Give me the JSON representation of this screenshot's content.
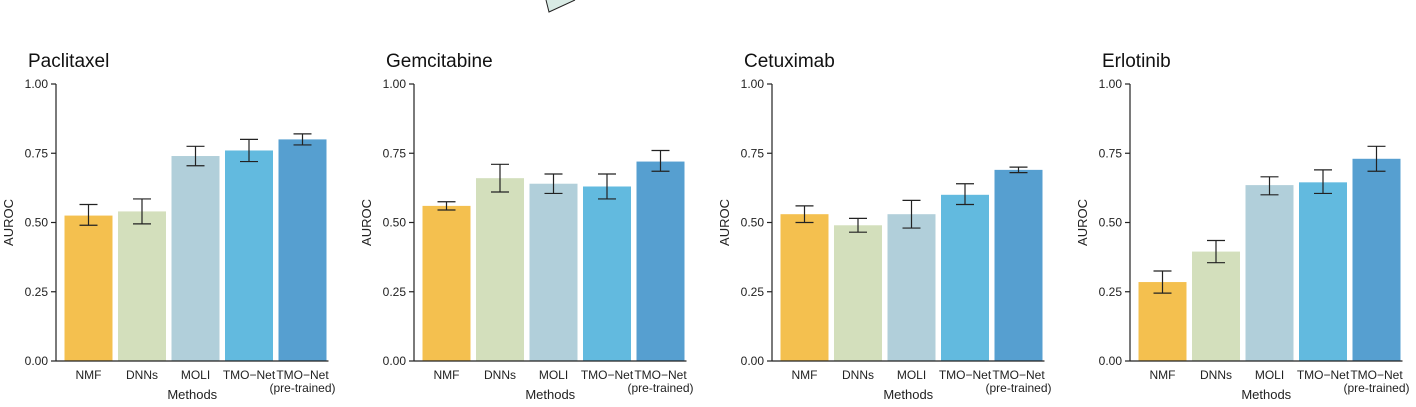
{
  "colors": {
    "NMF": "#f4c04f",
    "DNNs": "#d3dfbc",
    "MOLI": "#b1cfda",
    "TMO-Net": "#62badf",
    "TMO-Net (pre-trained)": "#569fd0"
  },
  "chart_data": [
    {
      "type": "bar",
      "title": "Paclitaxel",
      "xlabel": "Methods",
      "ylabel": "AUROC",
      "ylim": [
        0,
        1
      ],
      "yticks": [
        "0.00",
        "0.25",
        "0.50",
        "0.75",
        "1.00"
      ],
      "categories": [
        "NMF",
        "DNNs",
        "MOLI",
        "TMO−Net",
        "TMO−Net\n(pre-trained)"
      ],
      "values": [
        0.525,
        0.54,
        0.74,
        0.76,
        0.8
      ],
      "err_low": [
        0.49,
        0.495,
        0.705,
        0.72,
        0.78
      ],
      "err_high": [
        0.565,
        0.585,
        0.775,
        0.8,
        0.82
      ]
    },
    {
      "type": "bar",
      "title": "Gemcitabine",
      "xlabel": "Methods",
      "ylabel": "AUROC",
      "ylim": [
        0,
        1
      ],
      "yticks": [
        "0.00",
        "0.25",
        "0.50",
        "0.75",
        "1.00"
      ],
      "categories": [
        "NMF",
        "DNNs",
        "MOLI",
        "TMO−Net",
        "TMO−Net\n(pre-trained)"
      ],
      "values": [
        0.56,
        0.66,
        0.64,
        0.63,
        0.72
      ],
      "err_low": [
        0.545,
        0.61,
        0.605,
        0.585,
        0.685
      ],
      "err_high": [
        0.575,
        0.71,
        0.675,
        0.675,
        0.76
      ]
    },
    {
      "type": "bar",
      "title": "Cetuximab",
      "xlabel": "Methods",
      "ylabel": "AUROC",
      "ylim": [
        0,
        1
      ],
      "yticks": [
        "0.00",
        "0.25",
        "0.50",
        "0.75",
        "1.00"
      ],
      "categories": [
        "NMF",
        "DNNs",
        "MOLI",
        "TMO−Net",
        "TMO−Net\n(pre-trained)"
      ],
      "values": [
        0.53,
        0.49,
        0.53,
        0.6,
        0.69
      ],
      "err_low": [
        0.5,
        0.465,
        0.48,
        0.565,
        0.68
      ],
      "err_high": [
        0.56,
        0.515,
        0.58,
        0.64,
        0.7
      ]
    },
    {
      "type": "bar",
      "title": "Erlotinib",
      "xlabel": "Methods",
      "ylabel": "AUROC",
      "ylim": [
        0,
        1
      ],
      "yticks": [
        "0.00",
        "0.25",
        "0.50",
        "0.75",
        "1.00"
      ],
      "categories": [
        "NMF",
        "DNNs",
        "MOLI",
        "TMO−Net",
        "TMO−Net\n(pre-trained)"
      ],
      "values": [
        0.285,
        0.395,
        0.635,
        0.645,
        0.73
      ],
      "err_low": [
        0.245,
        0.355,
        0.6,
        0.605,
        0.685
      ],
      "err_high": [
        0.325,
        0.435,
        0.665,
        0.69,
        0.775
      ]
    }
  ]
}
